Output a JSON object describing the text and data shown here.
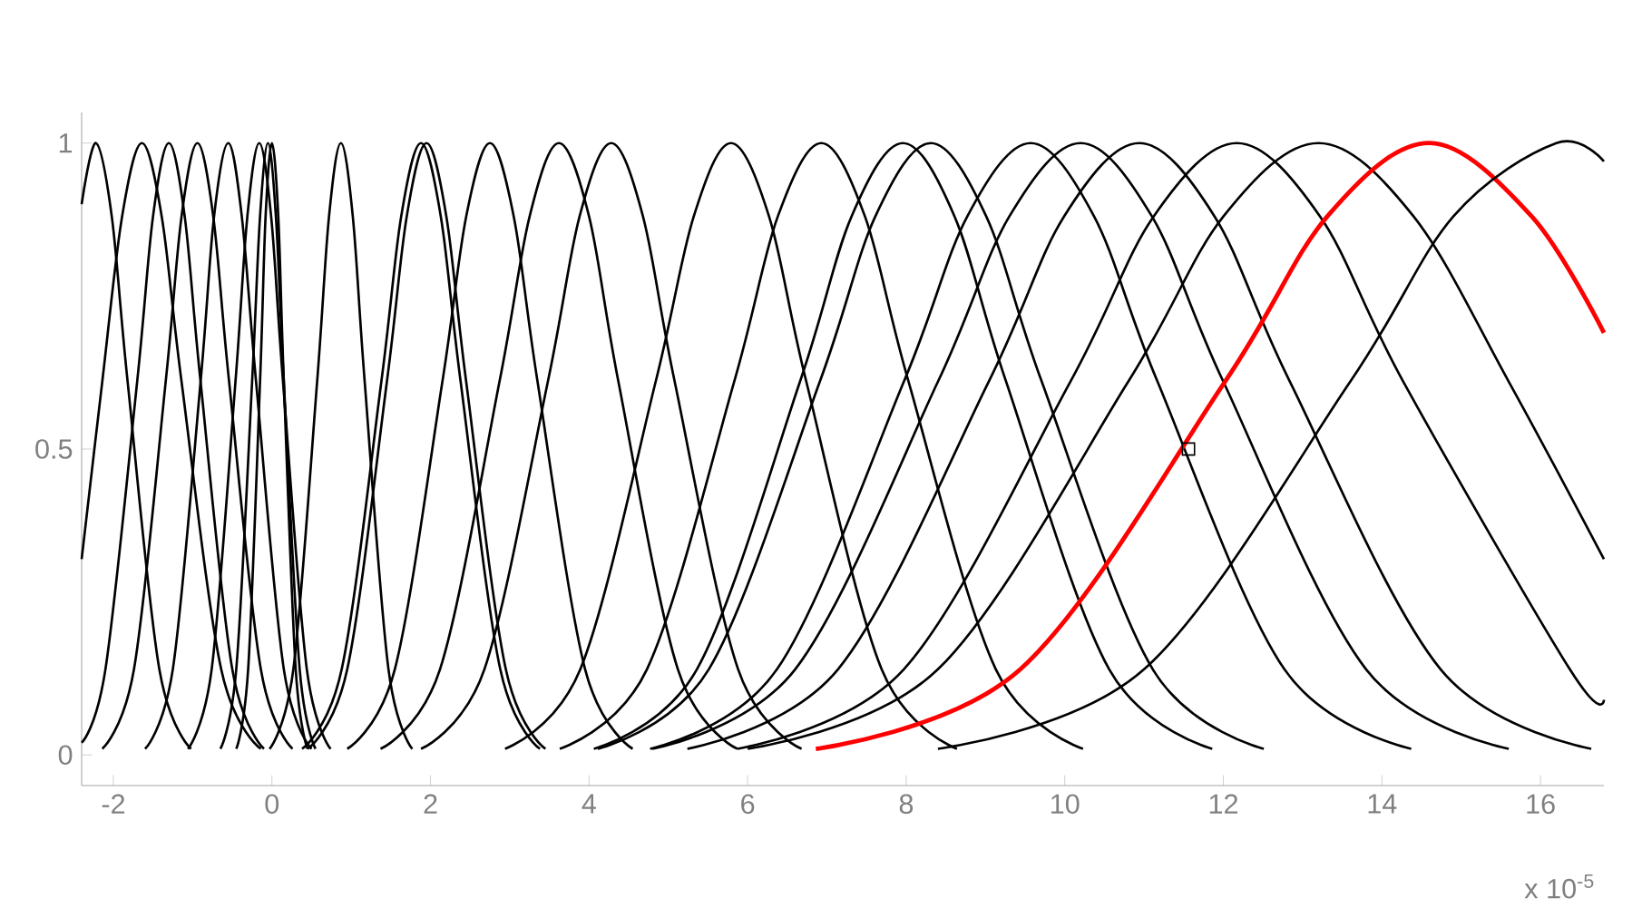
{
  "chart_data": {
    "type": "line",
    "xlim": [
      -2.4,
      16.8
    ],
    "ylim": [
      -0.05,
      1.05
    ],
    "xticks": [
      -2,
      0,
      2,
      4,
      6,
      8,
      10,
      12,
      14,
      16
    ],
    "yticks": [
      0,
      0.5,
      1
    ],
    "grid": false,
    "marker": "none",
    "line_style": "solid",
    "annotations": [
      "x 10$^{-5}$"
    ],
    "series": [
      {
        "color": "#000000",
        "x": [
          -2.4,
          -2.22,
          -2.02,
          -1.82,
          -1.42,
          -1.02
        ],
        "values": [
          0.9,
          1,
          0.88,
          0.61,
          0.14,
          0.01
        ]
      },
      {
        "color": "#000000",
        "x": [
          -2.4,
          -2.14,
          -1.89,
          -1.64,
          -1.39,
          -1.14,
          -0.64,
          -0.14
        ],
        "values": [
          0.32,
          0.61,
          0.88,
          1,
          0.88,
          0.61,
          0.14,
          0.01
        ]
      },
      {
        "color": "#000000",
        "x": [
          -2.4,
          -2.1,
          -1.7,
          -1.5,
          -1.3,
          -1.1,
          -0.9,
          -0.5,
          -0.1
        ],
        "values": [
          0.02,
          0.14,
          0.61,
          0.88,
          1,
          0.88,
          0.61,
          0.14,
          0.01
        ]
      },
      {
        "color": "#000000",
        "x": [
          -2.14,
          -1.74,
          -1.34,
          -1.14,
          -0.94,
          -0.74,
          -0.54,
          -0.14,
          0.26
        ],
        "values": [
          0.01,
          0.14,
          0.61,
          0.88,
          1,
          0.88,
          0.61,
          0.14,
          0.01
        ]
      },
      {
        "color": "#000000",
        "x": [
          -1.6,
          -1.25,
          -0.9,
          -0.73,
          -0.55,
          -0.38,
          -0.2,
          0.15,
          0.5
        ],
        "values": [
          0.01,
          0.14,
          0.61,
          0.88,
          1,
          0.88,
          0.61,
          0.14,
          0.01
        ]
      },
      {
        "color": "#000000",
        "x": [
          -1.06,
          -0.76,
          -0.46,
          -0.31,
          -0.16,
          -0.01,
          0.14,
          0.44,
          0.74
        ],
        "values": [
          0.01,
          0.14,
          0.61,
          0.88,
          1,
          0.88,
          0.61,
          0.14,
          0.01
        ]
      },
      {
        "color": "#000000",
        "x": [
          -0.65,
          -0.45,
          -0.25,
          -0.15,
          -0.05,
          0.05,
          0.15,
          0.35,
          0.55
        ],
        "values": [
          0.01,
          0.14,
          0.61,
          0.88,
          1,
          0.88,
          0.61,
          0.14,
          0.01
        ]
      },
      {
        "color": "#000000",
        "x": [
          -0.45,
          -0.3,
          -0.15,
          -0.08,
          0,
          0.08,
          0.15,
          0.3,
          0.45
        ],
        "values": [
          0.01,
          0.14,
          0.61,
          0.88,
          1,
          0.88,
          0.61,
          0.14,
          0.01
        ]
      },
      {
        "color": "#000000",
        "x": [
          -0.03,
          0.27,
          0.57,
          0.72,
          0.87,
          1.02,
          1.17,
          1.47,
          1.77
        ],
        "values": [
          0.01,
          0.14,
          0.61,
          0.88,
          1,
          0.88,
          0.61,
          0.14,
          0.01
        ]
      },
      {
        "color": "#000000",
        "x": [
          0.38,
          0.88,
          1.38,
          1.63,
          1.88,
          2.13,
          2.38,
          2.88,
          3.38
        ],
        "values": [
          0.01,
          0.14,
          0.61,
          0.88,
          1,
          0.88,
          0.61,
          0.14,
          0.01
        ]
      },
      {
        "color": "#000000",
        "x": [
          0.45,
          0.95,
          1.45,
          1.7,
          1.95,
          2.2,
          2.45,
          2.95,
          3.45
        ],
        "values": [
          0.01,
          0.14,
          0.61,
          0.88,
          1,
          0.88,
          0.61,
          0.14,
          0.01
        ]
      },
      {
        "color": "#000000",
        "x": [
          0.95,
          1.55,
          2.15,
          2.45,
          2.75,
          3.05,
          3.35,
          3.95,
          4.55
        ],
        "values": [
          0.01,
          0.14,
          0.61,
          0.88,
          1,
          0.88,
          0.61,
          0.14,
          0.01
        ]
      },
      {
        "color": "#000000",
        "x": [
          1.37,
          2.12,
          2.87,
          3.25,
          3.62,
          4.0,
          4.37,
          5.12,
          5.87
        ],
        "values": [
          0.01,
          0.14,
          0.61,
          0.88,
          1,
          0.88,
          0.61,
          0.14,
          0.01
        ]
      },
      {
        "color": "#000000",
        "x": [
          1.88,
          2.68,
          3.48,
          3.88,
          4.28,
          4.68,
          5.08,
          5.88,
          6.68
        ],
        "values": [
          0.01,
          0.14,
          0.61,
          0.88,
          1,
          0.88,
          0.61,
          0.14,
          0.01
        ]
      },
      {
        "color": "#000000",
        "x": [
          2.94,
          3.89,
          4.84,
          5.32,
          5.79,
          6.27,
          6.74,
          7.69,
          8.64
        ],
        "values": [
          0.01,
          0.14,
          0.61,
          0.88,
          1,
          0.88,
          0.61,
          0.14,
          0.01
        ]
      },
      {
        "color": "#000000",
        "x": [
          3.63,
          4.73,
          5.83,
          6.38,
          6.93,
          7.48,
          8.03,
          9.13,
          10.23
        ],
        "values": [
          0.01,
          0.14,
          0.61,
          0.88,
          1,
          0.88,
          0.61,
          0.14,
          0.01
        ]
      },
      {
        "color": "#000000",
        "x": [
          4.06,
          5.36,
          6.66,
          7.31,
          7.96,
          8.61,
          9.26,
          10.56,
          11.86
        ],
        "values": [
          0.01,
          0.14,
          0.61,
          0.88,
          1,
          0.88,
          0.61,
          0.14,
          0.01
        ]
      },
      {
        "color": "#000000",
        "x": [
          4.11,
          5.51,
          6.91,
          7.61,
          8.31,
          9.01,
          9.71,
          11.11,
          12.51
        ],
        "values": [
          0.01,
          0.14,
          0.61,
          0.88,
          1,
          0.88,
          0.61,
          0.14,
          0.01
        ]
      },
      {
        "color": "#000000",
        "x": [
          4.77,
          6.37,
          7.97,
          8.77,
          9.57,
          10.37,
          11.17,
          12.77,
          14.37
        ],
        "values": [
          0.01,
          0.14,
          0.61,
          0.88,
          1,
          0.88,
          0.61,
          0.14,
          0.01
        ]
      },
      {
        "color": "#000000",
        "x": [
          4.8,
          6.6,
          8.4,
          9.3,
          10.2,
          11.1,
          12.0,
          13.8,
          15.6
        ],
        "values": [
          0.01,
          0.14,
          0.61,
          0.88,
          1,
          0.88,
          0.61,
          0.14,
          0.01
        ]
      },
      {
        "color": "#000000",
        "x": [
          5.24,
          7.14,
          9.04,
          9.99,
          10.94,
          11.89,
          12.84,
          14.74,
          16.64
        ],
        "values": [
          0.01,
          0.14,
          0.61,
          0.88,
          1,
          0.88,
          0.61,
          0.14,
          0.01
        ]
      },
      {
        "color": "#000000",
        "x": [
          5.87,
          7.97,
          10.07,
          11.12,
          12.17,
          13.22,
          14.27,
          16.37,
          16.8
        ],
        "values": [
          0.01,
          0.14,
          0.61,
          0.88,
          1,
          0.88,
          0.61,
          0.14,
          0.09
        ]
      },
      {
        "color": "#000000",
        "x": [
          6.0,
          8.4,
          10.8,
          12.0,
          13.2,
          14.4,
          15.6,
          16.8
        ],
        "values": [
          0.01,
          0.14,
          0.61,
          0.88,
          1,
          0.88,
          0.61,
          0.32
        ]
      },
      {
        "color": "#ff0000",
        "x": [
          6.86,
          9.44,
          12.02,
          13.31,
          14.6,
          15.89,
          16.8
        ],
        "values": [
          0.01,
          0.14,
          0.61,
          0.88,
          1,
          0.88,
          0.69
        ]
      },
      {
        "color": "#000000",
        "x": [
          8.4,
          11.0,
          13.6,
          14.9,
          16.2,
          16.8
        ],
        "values": [
          0.01,
          0.14,
          0.61,
          0.88,
          1,
          0.97
        ]
      },
      {
        "type": "scatter",
        "marker": "square",
        "color": "#000000",
        "x": [
          11.56
        ],
        "values": [
          0.5
        ]
      }
    ]
  }
}
